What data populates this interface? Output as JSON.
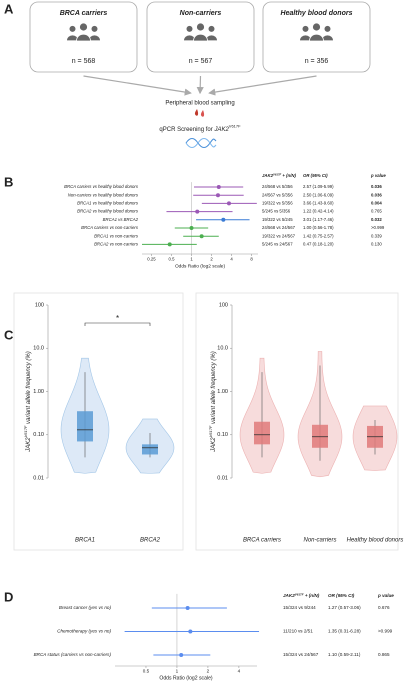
{
  "diagram": {
    "panel": "A",
    "groups": [
      {
        "label": "BRCA carriers",
        "n": "n = 568"
      },
      {
        "label": "Non-carriers",
        "n": "n = 567"
      },
      {
        "label": "Healthy blood donors",
        "n": "n = 356"
      }
    ],
    "sampling": "Peripheral blood sampling",
    "screening": {
      "text": "qPCR Screening for ",
      "gene": "JAK2",
      "variant": "V617F"
    }
  },
  "chart_data": [
    {
      "panel": "B",
      "type": "forest",
      "categories": [
        "BRCA carriers vs healthy blood donors",
        "Non-carriers vs healthy blood donors",
        "BRCA1 vs healthy blood donors",
        "BRCA2 vs healthy blood donors",
        "BRCA1 vs BRCA2",
        "BRCA carriers vs non-carriers",
        "BRCA1 vs non-carriers",
        "BRCA2 vs non-carriers"
      ],
      "values": [
        2.57,
        2.5,
        3.66,
        1.22,
        3.01,
        1,
        1.42,
        0.47
      ],
      "ci_low": [
        1.09,
        1.06,
        1.43,
        0.42,
        1.17,
        0.56,
        0.75,
        0.18
      ],
      "ci_high": [
        5.99,
        6.09,
        9.6,
        4.14,
        7.46,
        1.78,
        2.57,
        1.2
      ],
      "value_labels": [
        "2.57 (1.09-5.99)",
        "2.50 (1.06-6.09)",
        "3.66 (1.43-9.60)",
        "1.22 (0.42-4.14)",
        "3.01 (1.17-7.46)",
        "1.00 (0.56-1.78)",
        "1.42 (0.75-2.57)",
        "0.47 (0.18-1.20)"
      ],
      "counts": [
        "24/568 vs 5/356",
        "24/567 vs 5/356",
        "19/322 vs 5/356",
        "5/245 vs 5/356",
        "19/322 vs 5/245",
        "24/568 vs 24/567",
        "19/322 vs 24/567",
        "5/245 vs 24/567"
      ],
      "p_values": [
        "0.036",
        "0.036",
        "0.004",
        "0.765",
        "0.032",
        ">0.999",
        "0.339",
        "0.130"
      ],
      "p_bold": [
        true,
        true,
        true,
        false,
        true,
        false,
        false,
        false
      ],
      "colors": [
        "#9b59b6",
        "#9b59b6",
        "#9b59b6",
        "#9b59b6",
        "#3a7bd5",
        "#4caf50",
        "#4caf50",
        "#4caf50"
      ],
      "columns": {
        "counts": {
          "gene": "JAK2",
          "variant": "V617F",
          "suffix": " + (n/N)"
        },
        "or": "OR (95% CI)",
        "p": "p value"
      },
      "xlabel": "Odds Ratio (log2 scale)",
      "xscale": "log2",
      "xlim": [
        0.18,
        10
      ],
      "xticks": [
        0.25,
        0.5,
        1,
        2,
        4,
        8
      ],
      "reference": 1
    },
    {
      "panel": "C",
      "type": "violin",
      "categories": [
        "BRCA1",
        "BRCA2"
      ],
      "min": [
        0.03,
        0.03
      ],
      "q1": [
        0.07,
        0.035
      ],
      "median": [
        0.13,
        0.05
      ],
      "q3": [
        0.35,
        0.06
      ],
      "max": [
        2.8,
        0.11
      ],
      "color": "#5b9bd5",
      "fill": "#dde9f7",
      "ylabel": {
        "gene": "JAK2",
        "variant": "V617F",
        "suffix": " variant allele frequency (%)"
      },
      "yscale": "log",
      "ylim": [
        0.01,
        100
      ],
      "yticks": [
        0.01,
        {
          "value": 0.1,
          "label": "0.10"
        },
        {
          "value": 1,
          "label": "1.00"
        },
        {
          "value": 10,
          "label": "10.0"
        },
        100
      ],
      "annotation": "*"
    },
    {
      "type": "violin",
      "categories": [
        "BRCA carriers",
        "Non-carriers",
        "Healthy blood donors"
      ],
      "min": [
        0.03,
        0.025,
        0.035
      ],
      "q1": [
        0.06,
        0.05,
        0.05
      ],
      "median": [
        0.1,
        0.09,
        0.09
      ],
      "q3": [
        0.2,
        0.17,
        0.16
      ],
      "max": [
        2.8,
        4,
        0.22
      ],
      "color": "#e07a7a",
      "fill": "#f7dcdc",
      "ylabel": {
        "gene": "JAK2",
        "variant": "V617F",
        "suffix": " variant allele frequency (%)"
      },
      "yscale": "log",
      "ylim": [
        0.01,
        100
      ],
      "yticks": [
        0.01,
        {
          "value": 0.1,
          "label": "0.10"
        },
        {
          "value": 1,
          "label": "1.00"
        },
        {
          "value": 10,
          "label": "10.0"
        },
        100
      ]
    },
    {
      "panel": "D",
      "type": "forest",
      "categories": [
        "Breast cancer (yes vs no)",
        "Chemotherapy (yes vs no)",
        "BRCA status (carriers vs non-carriers)"
      ],
      "values": [
        1.27,
        1.35,
        1.1
      ],
      "ci_low": [
        0.57,
        0.31,
        0.59
      ],
      "ci_high": [
        3.06,
        6.28,
        2.11
      ],
      "value_labels": [
        "1.27 (0.57-3.06)",
        "1.35 (0.31-6.28)",
        "1.10 (0.59-2.11)"
      ],
      "counts": [
        "15/324 vs 9/244",
        "11/210 vs 2/51",
        "15/324 vs 24/567"
      ],
      "p_values": [
        "0.676",
        ">0.999",
        "0.865"
      ],
      "p_bold": [
        false,
        false,
        false
      ],
      "colors": [
        "#5b8def",
        "#5b8def",
        "#5b8def"
      ],
      "columns": {
        "counts": {
          "gene": "JAK2",
          "variant": "V617F",
          "suffix": " + (n/N)"
        },
        "or": "OR (95% CI)",
        "p": "p value"
      },
      "xlabel": "Odds Ratio (log2 scale)",
      "xscale": "log2",
      "xlim": [
        0.25,
        6
      ],
      "xticks": [
        0.5,
        1,
        2,
        4
      ],
      "reference": 1
    }
  ]
}
